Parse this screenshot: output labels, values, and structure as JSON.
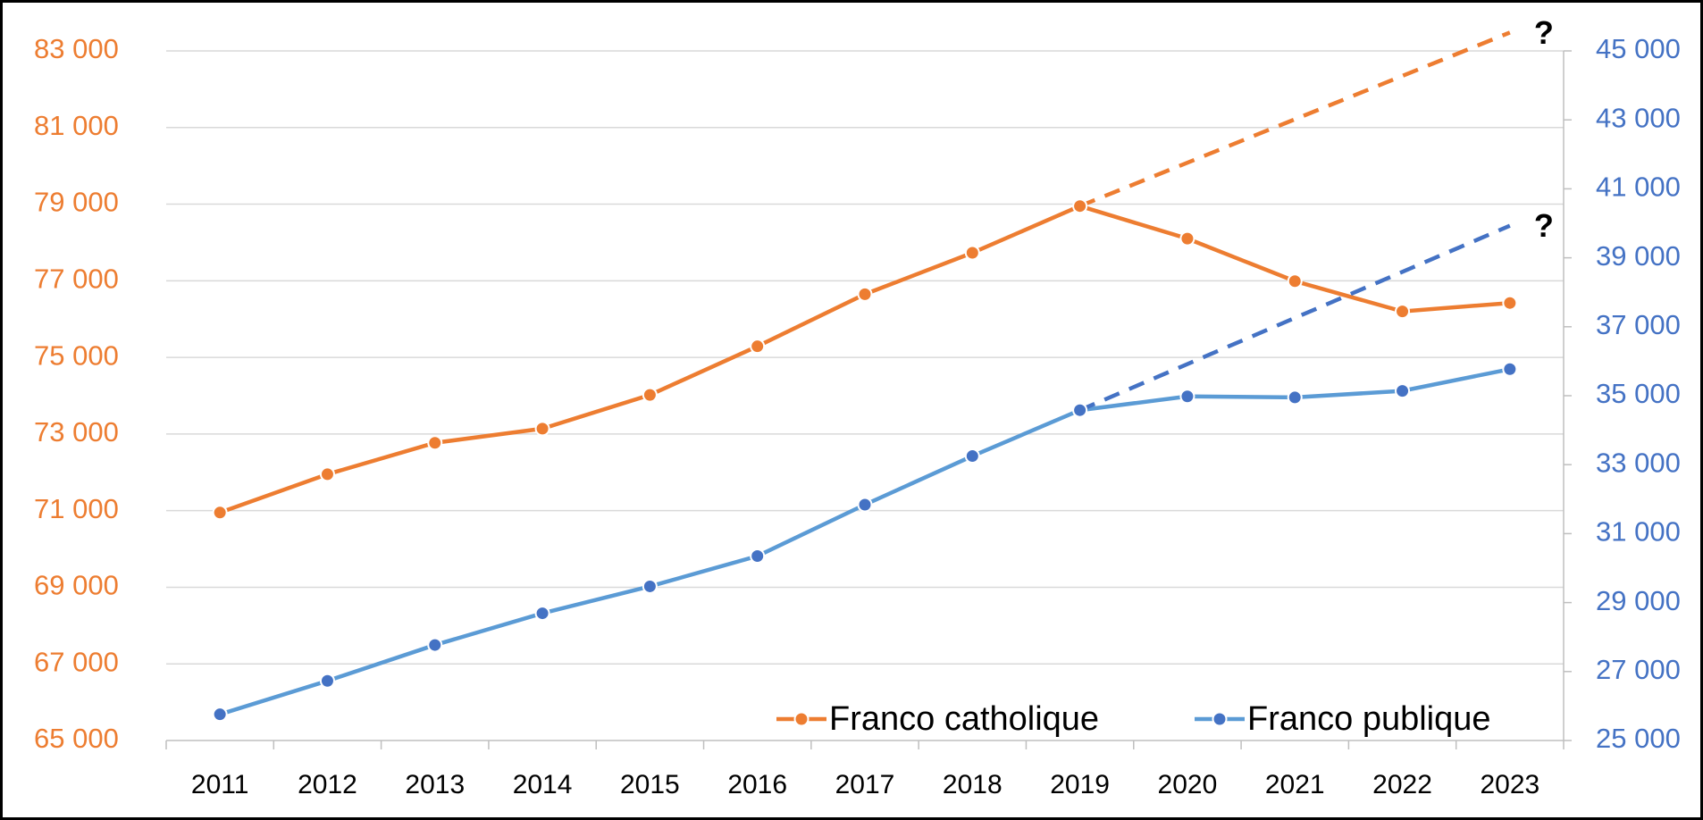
{
  "chart_data": {
    "type": "line",
    "categories": [
      "2011",
      "2012",
      "2013",
      "2014",
      "2015",
      "2016",
      "2017",
      "2018",
      "2019",
      "2020",
      "2021",
      "2022",
      "2023"
    ],
    "series": [
      {
        "name": "Franco catholique",
        "color": "#ed7d31",
        "marker_color": "#ed7d31",
        "axis": "y",
        "values": [
          70950,
          71950,
          72770,
          73140,
          74020,
          75290,
          76650,
          77730,
          78950,
          78100,
          76990,
          76200,
          76420
        ]
      },
      {
        "name": "Franco publique",
        "color": "#5b9bd5",
        "marker_color": "#4472c4",
        "axis": "y2",
        "values": [
          25760,
          26730,
          27770,
          28690,
          29470,
          30350,
          31840,
          33250,
          34580,
          34980,
          34950,
          35140,
          35770
        ]
      },
      {
        "color": "#ed7d31",
        "axis": "y",
        "dashed": true,
        "values": [
          null,
          null,
          null,
          null,
          null,
          null,
          null,
          null,
          78950,
          null,
          null,
          null,
          83480
        ]
      },
      {
        "color": "#4472c4",
        "axis": "y2",
        "dashed": true,
        "values": [
          null,
          null,
          null,
          null,
          null,
          null,
          null,
          null,
          34580,
          null,
          null,
          null,
          39930
        ]
      }
    ],
    "annotations": [
      "?",
      "?"
    ],
    "ylim": [
      65000,
      83000
    ],
    "yticks": [
      {
        "value": 65000,
        "label": "65 000"
      },
      {
        "value": 67000,
        "label": "67 000"
      },
      {
        "value": 69000,
        "label": "69 000"
      },
      {
        "value": 71000,
        "label": "71 000"
      },
      {
        "value": 73000,
        "label": "73 000"
      },
      {
        "value": 75000,
        "label": "75 000"
      },
      {
        "value": 77000,
        "label": "77 000"
      },
      {
        "value": 79000,
        "label": "79 000"
      },
      {
        "value": 81000,
        "label": "81 000"
      },
      {
        "value": 83000,
        "label": "83 000"
      }
    ],
    "y2lim": [
      25000,
      45000
    ],
    "y2ticks": [
      {
        "value": 25000,
        "label": "25 000"
      },
      {
        "value": 27000,
        "label": "27 000"
      },
      {
        "value": 29000,
        "label": "29 000"
      },
      {
        "value": 31000,
        "label": "31 000"
      },
      {
        "value": 33000,
        "label": "33 000"
      },
      {
        "value": 35000,
        "label": "35 000"
      },
      {
        "value": 37000,
        "label": "37 000"
      },
      {
        "value": 39000,
        "label": "39 000"
      },
      {
        "value": 41000,
        "label": "41 000"
      },
      {
        "value": 43000,
        "label": "43 000"
      },
      {
        "value": 45000,
        "label": "45 000"
      }
    ],
    "y_label_color": "#ed7d31",
    "y2_label_color": "#4472c4",
    "grid": true,
    "legend": "lower right"
  }
}
